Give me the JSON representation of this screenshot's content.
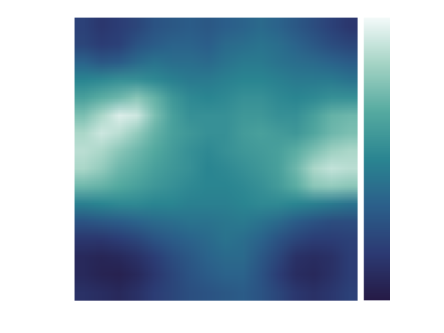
{
  "chart_data": {
    "type": "heatmap",
    "tick_labels": false,
    "cells": [
      [
        0.2,
        0.15,
        0.18,
        0.22,
        0.28,
        0.3,
        0.32,
        0.3,
        0.33,
        0.35,
        0.38,
        0.35,
        0.3,
        0.25,
        0.2,
        0.15
      ],
      [
        0.22,
        0.18,
        0.2,
        0.28,
        0.32,
        0.35,
        0.35,
        0.33,
        0.38,
        0.4,
        0.42,
        0.4,
        0.35,
        0.3,
        0.25,
        0.22
      ],
      [
        0.35,
        0.3,
        0.32,
        0.38,
        0.42,
        0.4,
        0.4,
        0.38,
        0.42,
        0.45,
        0.45,
        0.42,
        0.4,
        0.38,
        0.35,
        0.32
      ],
      [
        0.5,
        0.52,
        0.55,
        0.55,
        0.52,
        0.48,
        0.45,
        0.45,
        0.48,
        0.5,
        0.5,
        0.48,
        0.45,
        0.45,
        0.45,
        0.42
      ],
      [
        0.62,
        0.68,
        0.72,
        0.78,
        0.7,
        0.58,
        0.52,
        0.5,
        0.52,
        0.55,
        0.55,
        0.52,
        0.5,
        0.52,
        0.55,
        0.55
      ],
      [
        0.75,
        0.85,
        0.95,
        0.92,
        0.75,
        0.62,
        0.55,
        0.55,
        0.55,
        0.58,
        0.58,
        0.55,
        0.55,
        0.62,
        0.7,
        0.72
      ],
      [
        0.85,
        0.92,
        0.88,
        0.8,
        0.7,
        0.62,
        0.58,
        0.55,
        0.55,
        0.6,
        0.62,
        0.6,
        0.58,
        0.65,
        0.72,
        0.75
      ],
      [
        0.88,
        0.85,
        0.78,
        0.72,
        0.66,
        0.6,
        0.55,
        0.52,
        0.55,
        0.58,
        0.6,
        0.62,
        0.68,
        0.75,
        0.82,
        0.85
      ],
      [
        0.85,
        0.8,
        0.72,
        0.68,
        0.62,
        0.58,
        0.55,
        0.5,
        0.52,
        0.55,
        0.58,
        0.62,
        0.72,
        0.85,
        0.9,
        0.88
      ],
      [
        0.72,
        0.7,
        0.66,
        0.62,
        0.58,
        0.55,
        0.52,
        0.5,
        0.5,
        0.52,
        0.55,
        0.6,
        0.68,
        0.78,
        0.8,
        0.78
      ],
      [
        0.48,
        0.5,
        0.52,
        0.52,
        0.5,
        0.5,
        0.48,
        0.48,
        0.48,
        0.5,
        0.52,
        0.52,
        0.5,
        0.48,
        0.45,
        0.42
      ],
      [
        0.28,
        0.3,
        0.32,
        0.35,
        0.38,
        0.4,
        0.42,
        0.42,
        0.44,
        0.45,
        0.42,
        0.38,
        0.32,
        0.28,
        0.25,
        0.25
      ],
      [
        0.15,
        0.15,
        0.18,
        0.22,
        0.28,
        0.32,
        0.35,
        0.38,
        0.42,
        0.4,
        0.35,
        0.28,
        0.22,
        0.18,
        0.18,
        0.2
      ],
      [
        0.08,
        0.06,
        0.08,
        0.12,
        0.18,
        0.25,
        0.3,
        0.35,
        0.38,
        0.38,
        0.3,
        0.22,
        0.12,
        0.1,
        0.12,
        0.18
      ],
      [
        0.08,
        0.05,
        0.04,
        0.08,
        0.15,
        0.22,
        0.28,
        0.32,
        0.35,
        0.35,
        0.28,
        0.18,
        0.1,
        0.08,
        0.12,
        0.18
      ],
      [
        0.12,
        0.1,
        0.08,
        0.12,
        0.18,
        0.22,
        0.26,
        0.28,
        0.3,
        0.32,
        0.28,
        0.22,
        0.15,
        0.12,
        0.15,
        0.2
      ]
    ],
    "colorbar": {
      "range": [
        0,
        1
      ],
      "ticks": []
    }
  }
}
